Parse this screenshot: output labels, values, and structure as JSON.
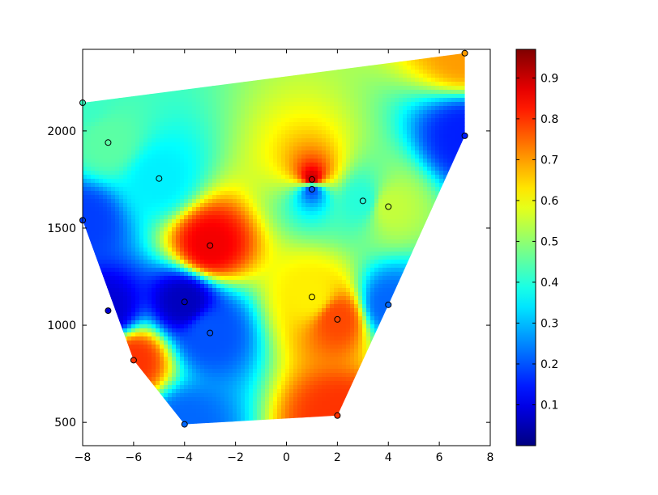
{
  "chart_data": {
    "type": "heatmap",
    "xlim": [
      -8,
      8
    ],
    "ylim": [
      380,
      2420
    ],
    "x_ticks": [
      -8,
      -6,
      -4,
      -2,
      0,
      2,
      4,
      6,
      8
    ],
    "x_tick_labels": [
      "−8",
      "−6",
      "−4",
      "−2",
      "0",
      "2",
      "4",
      "6",
      "8"
    ],
    "y_ticks": [
      500,
      1000,
      1500,
      2000
    ],
    "y_tick_labels": [
      "500",
      "1000",
      "1500",
      "2000"
    ],
    "colorbar": {
      "colormap": "jet",
      "range": [
        0.0,
        0.97
      ],
      "ticks": [
        0.1,
        0.2,
        0.3,
        0.4,
        0.5,
        0.6,
        0.7,
        0.8,
        0.9
      ],
      "tick_labels": [
        "0.1",
        "0.2",
        "0.3",
        "0.4",
        "0.5",
        "0.6",
        "0.7",
        "0.8",
        "0.9"
      ]
    },
    "points": [
      {
        "x": -8,
        "y": 2145,
        "value": 0.42
      },
      {
        "x": -7,
        "y": 1940,
        "value": 0.45
      },
      {
        "x": -5,
        "y": 1755,
        "value": 0.35
      },
      {
        "x": -8,
        "y": 1540,
        "value": 0.18
      },
      {
        "x": -3,
        "y": 1410,
        "value": 0.86
      },
      {
        "x": -7,
        "y": 1075,
        "value": 0.08
      },
      {
        "x": -4,
        "y": 1120,
        "value": 0.06
      },
      {
        "x": -3,
        "y": 960,
        "value": 0.2
      },
      {
        "x": -6,
        "y": 820,
        "value": 0.8
      },
      {
        "x": -4,
        "y": 490,
        "value": 0.22
      },
      {
        "x": 1,
        "y": 1750,
        "value": 0.9
      },
      {
        "x": 1,
        "y": 1700,
        "value": 0.2
      },
      {
        "x": 3,
        "y": 1640,
        "value": 0.4
      },
      {
        "x": 4,
        "y": 1610,
        "value": 0.55
      },
      {
        "x": 1,
        "y": 1145,
        "value": 0.62
      },
      {
        "x": 2,
        "y": 1030,
        "value": 0.78
      },
      {
        "x": 2,
        "y": 535,
        "value": 0.8
      },
      {
        "x": 4,
        "y": 1105,
        "value": 0.22
      },
      {
        "x": 7,
        "y": 2400,
        "value": 0.7
      },
      {
        "x": 7,
        "y": 1975,
        "value": 0.15
      }
    ],
    "hull": [
      [
        -4,
        490
      ],
      [
        2,
        535
      ],
      [
        4,
        1105
      ],
      [
        7,
        1975
      ],
      [
        7,
        2400
      ],
      [
        -8,
        2145
      ],
      [
        -8,
        1540
      ],
      [
        -6,
        820
      ]
    ],
    "grid": false,
    "legend": "none"
  }
}
